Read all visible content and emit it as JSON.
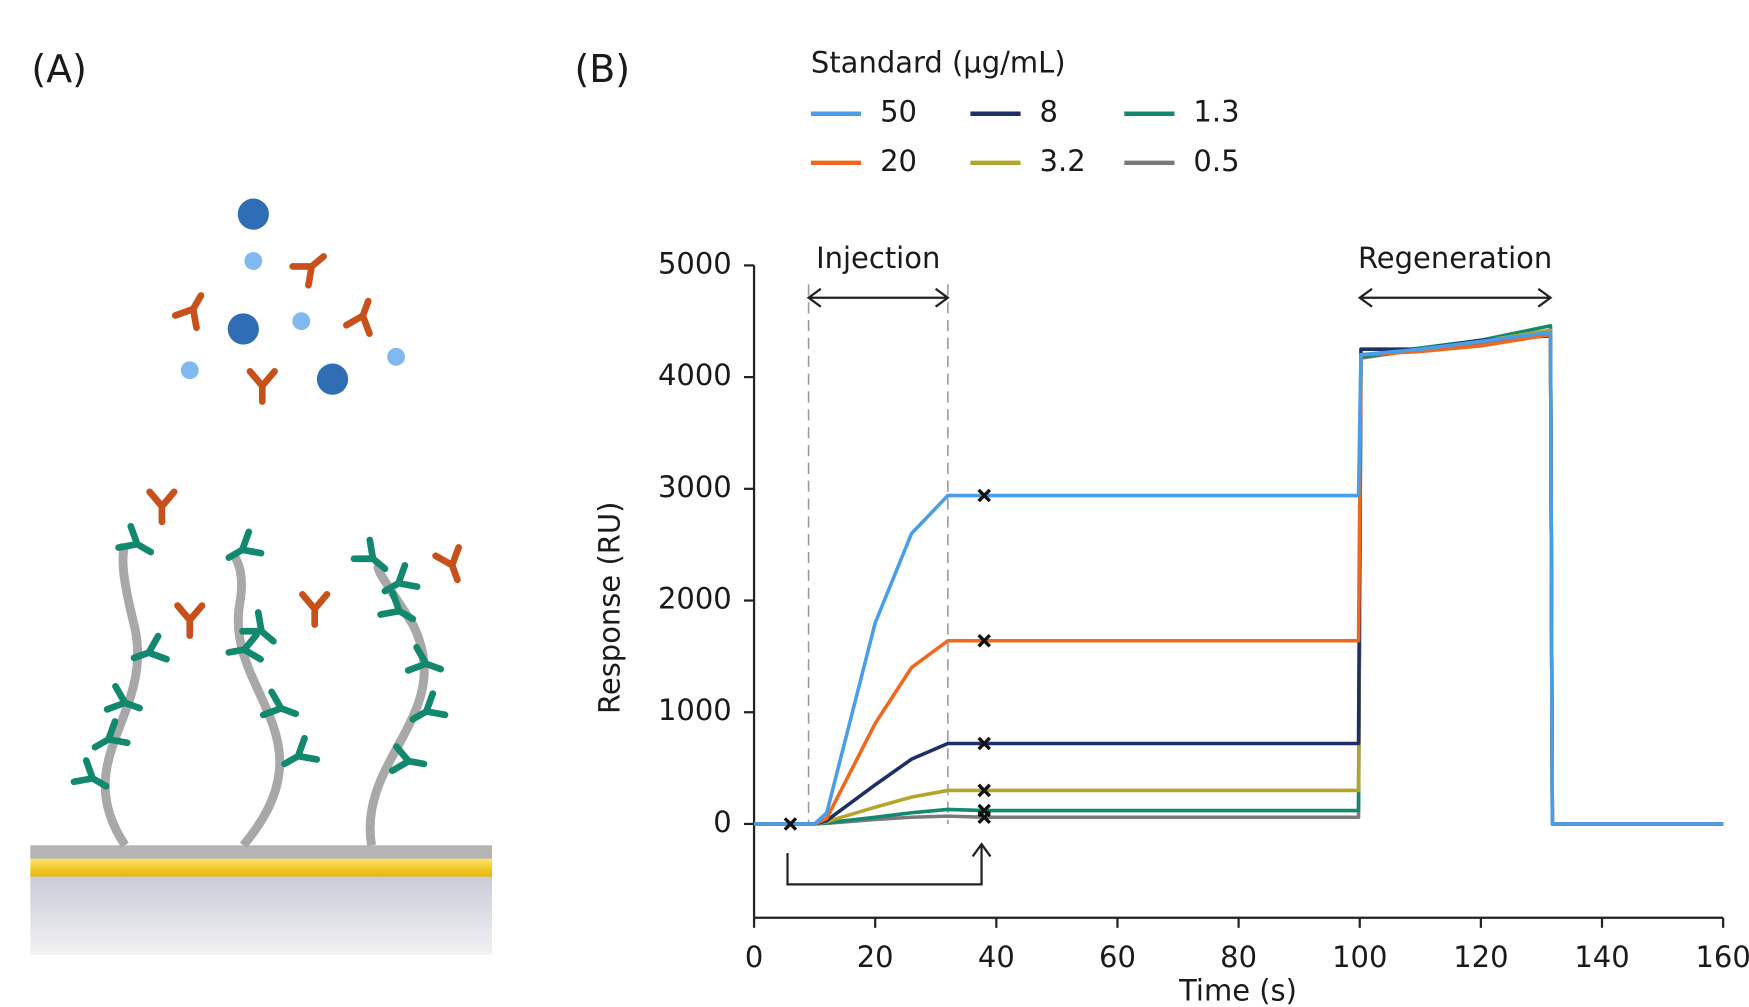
{
  "panels": {
    "a_label": "(A)",
    "b_label": "(B)"
  },
  "chart_data": {
    "type": "line",
    "legend_title": "Standard (µg/mL)",
    "xlabel": "Time (s)",
    "ylabel": "Response (RU)",
    "xlim": [
      0,
      160
    ],
    "xticks": [
      0,
      20,
      40,
      60,
      80,
      100,
      120,
      140,
      160
    ],
    "ylim": [
      -840,
      5000
    ],
    "yticks": [
      0,
      1000,
      2000,
      3000,
      4000,
      5000
    ],
    "annotations": [
      {
        "text": "Injection",
        "x": [
          9,
          32
        ]
      },
      {
        "text": "Regeneration",
        "x": [
          100,
          131.5
        ]
      }
    ],
    "x": [
      0,
      6,
      10,
      12,
      20,
      26,
      32,
      38,
      60,
      80,
      99.8,
      100.2,
      110,
      120,
      131.5,
      131.8,
      150,
      160
    ],
    "series": [
      {
        "name": "50",
        "color": "#4a9ee8",
        "values": [
          0,
          0,
          0,
          100,
          1800,
          2600,
          2940,
          2940,
          2940,
          2940,
          2940,
          4200,
          4250,
          4320,
          4400,
          0,
          0,
          0
        ]
      },
      {
        "name": "20",
        "color": "#f0671d",
        "values": [
          0,
          0,
          0,
          50,
          900,
          1400,
          1640,
          1640,
          1640,
          1640,
          1640,
          4200,
          4230,
          4280,
          4380,
          0,
          0,
          0
        ]
      },
      {
        "name": "8",
        "color": "#1c2f66",
        "values": [
          0,
          0,
          0,
          30,
          350,
          580,
          720,
          720,
          720,
          720,
          720,
          4250,
          4250,
          4330,
          4370,
          0,
          0,
          0
        ]
      },
      {
        "name": "3.2",
        "color": "#b3a52a",
        "values": [
          0,
          0,
          0,
          20,
          150,
          240,
          300,
          300,
          300,
          300,
          300,
          4200,
          4250,
          4320,
          4420,
          0,
          0,
          0
        ]
      },
      {
        "name": "1.3",
        "color": "#12886e",
        "values": [
          0,
          0,
          0,
          10,
          60,
          100,
          130,
          120,
          120,
          120,
          120,
          4180,
          4260,
          4330,
          4460,
          0,
          0,
          0
        ]
      },
      {
        "name": "0.5",
        "color": "#7a7a7a",
        "values": [
          0,
          0,
          0,
          5,
          40,
          60,
          70,
          60,
          60,
          60,
          60,
          4170,
          4250,
          4300,
          4400,
          0,
          0,
          0
        ]
      }
    ],
    "markers_at": [
      1,
      7
    ]
  }
}
